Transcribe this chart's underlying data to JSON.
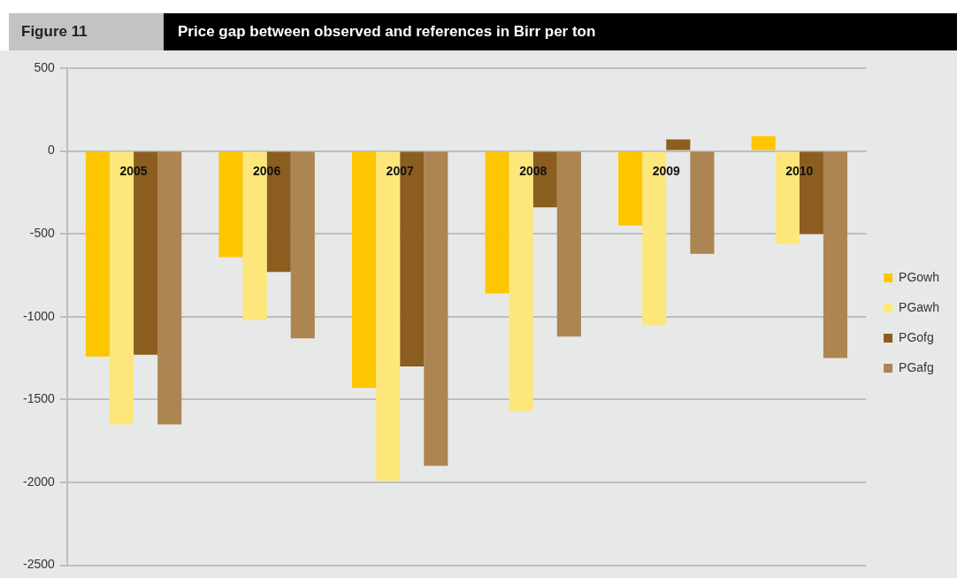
{
  "chart_data": {
    "type": "bar",
    "title": "Price gap between observed and references in Birr per ton",
    "annotations": [
      "Figure 11"
    ],
    "categories": [
      "2005",
      "2006",
      "2007",
      "2008",
      "2009",
      "2010"
    ],
    "series": [
      {
        "name": "PGowh",
        "color": "#fec600",
        "values": [
          -1240,
          -640,
          -1430,
          -860,
          -450,
          90
        ]
      },
      {
        "name": "PGawh",
        "color": "#fde67a",
        "values": [
          -1650,
          -1020,
          -1990,
          -1570,
          -1050,
          -560
        ]
      },
      {
        "name": "PGofg",
        "color": "#8b5e1f",
        "values": [
          -1230,
          -730,
          -1300,
          -340,
          70,
          -500
        ]
      },
      {
        "name": "PGafg",
        "color": "#ac8553",
        "values": [
          -1650,
          -1130,
          -1900,
          -1120,
          -620,
          -1250
        ]
      }
    ],
    "ylim": [
      -2500,
      500
    ],
    "yticks": [
      -2500,
      -2000,
      -1500,
      -1000,
      -500,
      0,
      500
    ],
    "grid": "y",
    "legend": "right"
  }
}
